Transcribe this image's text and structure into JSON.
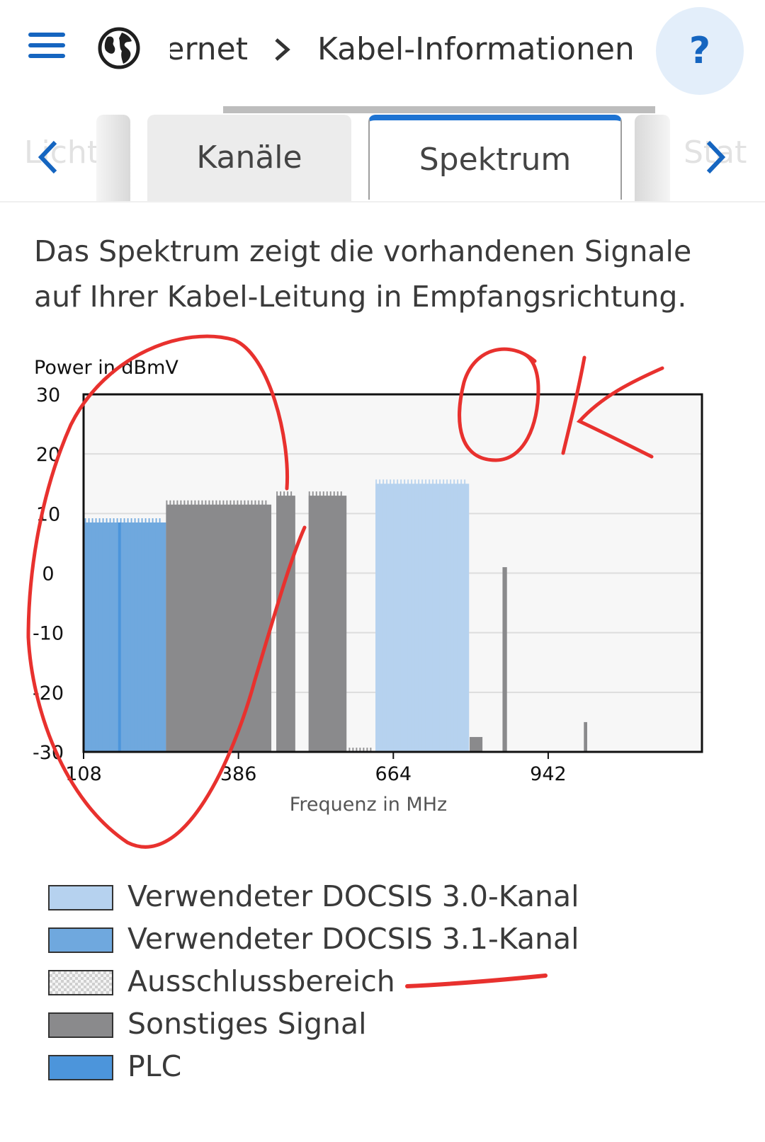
{
  "header": {
    "breadcrumb_prev": "Internet",
    "breadcrumb_current": "Kabel-Informationen",
    "help_label": "?"
  },
  "tabs": [
    {
      "label": "Kanäle"
    },
    {
      "label": "Spektrum",
      "active": true
    }
  ],
  "tab_ghost_left": "Licht",
  "tab_ghost_right": "Stat",
  "intro_text": "Das Spektrum zeigt die vorhandenen Signale auf Ihrer Kabel-Leitung in Empfangsrichtung.",
  "colors": {
    "docsis30": "#b6d2ef",
    "docsis31": "#6fa8de",
    "other": "#8a8a8c",
    "plc": "#4c95db",
    "accent": "#1565c0",
    "annotation": "#e8312e"
  },
  "chart_data": {
    "type": "area",
    "ylabel": "Power in dBmV",
    "xlabel": "Frequenz in MHz",
    "xlim": [
      108,
      1218
    ],
    "ylim": [
      -30,
      30
    ],
    "x_ticks": [
      108,
      386,
      664,
      942
    ],
    "y_ticks": [
      30,
      20,
      10,
      0,
      -10,
      -20,
      -30
    ],
    "y_tick_labels": [
      "30",
      "20",
      "10",
      "0",
      "-10",
      "-20",
      "-30"
    ],
    "grid": true,
    "series": [
      {
        "name": "Verwendeter DOCSIS 3.1-Kanal",
        "color": "#6fa8de",
        "bands": [
          {
            "from": 110,
            "to": 256,
            "level": 8.5
          }
        ]
      },
      {
        "name": "PLC",
        "color": "#4c95db",
        "bands": [
          {
            "from": 170,
            "to": 175,
            "level": 8.5
          }
        ]
      },
      {
        "name": "Sonstiges Signal",
        "color": "#8a8a8c",
        "bands": [
          {
            "from": 256,
            "to": 445,
            "level": 11.5
          },
          {
            "from": 454,
            "to": 488,
            "level": 13
          },
          {
            "from": 512,
            "to": 580,
            "level": 13
          },
          {
            "from": 584,
            "to": 632,
            "level": -30
          },
          {
            "from": 801,
            "to": 824,
            "level": -27.5
          },
          {
            "from": 860,
            "to": 868,
            "level": 1
          },
          {
            "from": 1006,
            "to": 1012,
            "level": -25
          }
        ]
      },
      {
        "name": "Verwendeter DOCSIS 3.0-Kanal",
        "color": "#b6d2ef",
        "bands": [
          {
            "from": 632,
            "to": 800,
            "level": 15
          }
        ]
      }
    ]
  },
  "legend": [
    {
      "label": "Verwendeter DOCSIS 3.0-Kanal",
      "swatch": "docsis30"
    },
    {
      "label": "Verwendeter DOCSIS 3.1-Kanal",
      "swatch": "docsis31"
    },
    {
      "label": "Ausschlussbereich",
      "swatch": "checker"
    },
    {
      "label": "Sonstiges Signal",
      "swatch": "other"
    },
    {
      "label": "PLC",
      "swatch": "plc"
    }
  ],
  "handwriting": "OK"
}
